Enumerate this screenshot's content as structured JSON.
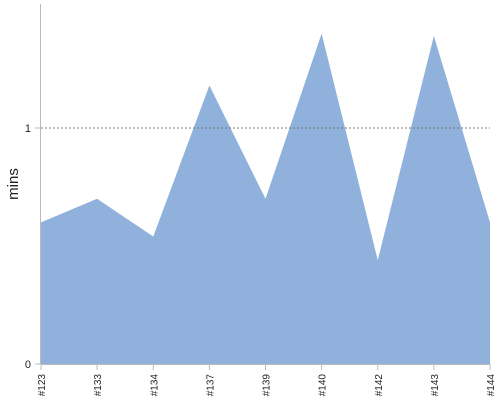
{
  "chart_data": {
    "type": "area",
    "categories": [
      "#123",
      "#133",
      "#134",
      "#137",
      "#139",
      "#140",
      "#142",
      "#143",
      "#144"
    ],
    "series": [
      {
        "values": [
          0.6,
          0.7,
          0.54,
          1.18,
          0.7,
          1.4,
          0.44,
          1.39,
          0.6
        ],
        "color": "#8fb1db"
      }
    ],
    "title": "",
    "xlabel": "",
    "ylabel": "mins",
    "ylim": [
      0,
      1.5
    ],
    "yticks": [
      {
        "value": 0,
        "label": "0"
      },
      {
        "value": 1,
        "label": "1"
      }
    ],
    "reference_lines": [
      {
        "value": 1,
        "style": "dotted",
        "color": "#777777"
      }
    ],
    "axis_color": "#bbbbbb",
    "grid": false
  }
}
